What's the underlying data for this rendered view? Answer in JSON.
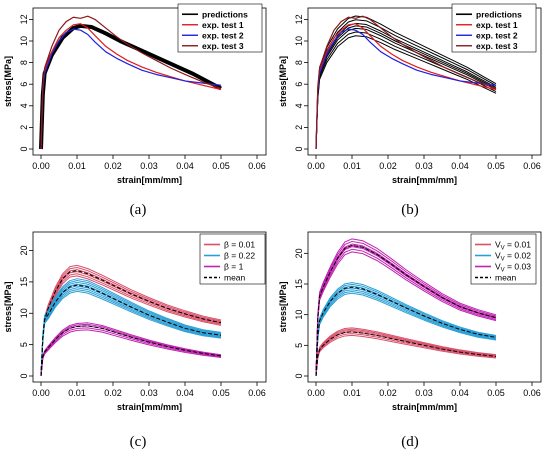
{
  "chart_data": [
    {
      "panel": "(a)",
      "type": "line",
      "xlabel": "strain[mm/mm]",
      "ylabel": "stress[MPa]",
      "xlim": [
        0,
        0.06
      ],
      "ylim": [
        0,
        12.5
      ],
      "xticks": [
        "0.00",
        "0.01",
        "0.02",
        "0.03",
        "0.04",
        "0.05",
        "0.06"
      ],
      "yticks": [
        "0",
        "2",
        "4",
        "6",
        "8",
        "10",
        "12"
      ],
      "legend_position": "top-right",
      "series": [
        {
          "name": "predictions",
          "color": "#000000",
          "width": 4,
          "x": [
            0,
            0.0005,
            0.001,
            0.003,
            0.006,
            0.009,
            0.011,
            0.014,
            0.018,
            0.022,
            0.026,
            0.03,
            0.034,
            0.038,
            0.042,
            0.046,
            0.05
          ],
          "y": [
            0,
            5.0,
            7.0,
            8.7,
            10.3,
            11.2,
            11.4,
            11.3,
            10.7,
            10.0,
            9.4,
            8.8,
            8.2,
            7.6,
            7.0,
            6.3,
            5.6
          ]
        },
        {
          "name": "exp. test 1",
          "color": "#e41a1c",
          "width": 1.2,
          "x": [
            0,
            0.0005,
            0.001,
            0.003,
            0.005,
            0.007,
            0.009,
            0.011,
            0.013,
            0.015,
            0.018,
            0.021,
            0.024,
            0.028,
            0.032,
            0.036,
            0.04,
            0.045,
            0.05
          ],
          "y": [
            0,
            5.5,
            7.2,
            9.0,
            10.3,
            11.0,
            11.5,
            11.6,
            11.2,
            10.5,
            9.5,
            8.8,
            8.2,
            7.6,
            7.1,
            6.7,
            6.3,
            5.9,
            5.5
          ]
        },
        {
          "name": "exp. test 2",
          "color": "#2020e0",
          "width": 1.2,
          "x": [
            0,
            0.0005,
            0.001,
            0.003,
            0.005,
            0.007,
            0.009,
            0.011,
            0.013,
            0.015,
            0.018,
            0.021,
            0.024,
            0.028,
            0.032,
            0.036,
            0.04,
            0.045,
            0.05
          ],
          "y": [
            0,
            5.4,
            7.0,
            8.8,
            10.0,
            10.8,
            11.1,
            11.0,
            10.6,
            9.9,
            9.0,
            8.4,
            7.9,
            7.3,
            6.9,
            6.6,
            6.3,
            6.1,
            5.9
          ]
        },
        {
          "name": "exp. test 3",
          "color": "#8b1a1a",
          "width": 1.2,
          "x": [
            0,
            0.0005,
            0.001,
            0.003,
            0.005,
            0.007,
            0.009,
            0.011,
            0.013,
            0.015,
            0.018,
            0.021,
            0.024,
            0.028,
            0.032,
            0.036,
            0.04,
            0.045,
            0.05
          ],
          "y": [
            0,
            5.8,
            7.5,
            9.5,
            11.0,
            11.8,
            12.2,
            12.1,
            12.3,
            12.0,
            11.2,
            10.4,
            9.7,
            8.9,
            8.2,
            7.5,
            6.9,
            6.2,
            5.6
          ]
        }
      ]
    },
    {
      "panel": "(b)",
      "type": "line",
      "xlabel": "strain[mm/mm]",
      "ylabel": "stress[MPa]",
      "xlim": [
        0,
        0.06
      ],
      "ylim": [
        0,
        12.5
      ],
      "xticks": [
        "0.00",
        "0.01",
        "0.02",
        "0.03",
        "0.04",
        "0.05",
        "0.06"
      ],
      "yticks": [
        "0",
        "2",
        "4",
        "6",
        "8",
        "10",
        "12"
      ],
      "legend_position": "top-right",
      "series": [
        {
          "name": "predictions",
          "color": "#000000",
          "width": 1,
          "x": [
            0,
            0.0005,
            0.001,
            0.003,
            0.006,
            0.009,
            0.011,
            0.014,
            0.018,
            0.022,
            0.026,
            0.03,
            0.034,
            0.038,
            0.042,
            0.046,
            0.05
          ],
          "y": [
            0,
            5.0,
            7.0,
            8.7,
            10.3,
            11.2,
            11.4,
            11.3,
            10.7,
            10.0,
            9.4,
            8.8,
            8.2,
            7.6,
            7.0,
            6.3,
            5.6
          ],
          "scales": [
            0.92,
            0.95,
            0.98,
            1.0,
            1.02,
            1.05,
            1.08
          ]
        },
        {
          "name": "exp. test 1",
          "color": "#e41a1c",
          "width": 1.2,
          "x": [
            0,
            0.0005,
            0.001,
            0.003,
            0.005,
            0.007,
            0.009,
            0.011,
            0.013,
            0.015,
            0.018,
            0.021,
            0.024,
            0.028,
            0.032,
            0.036,
            0.04,
            0.045,
            0.05
          ],
          "y": [
            0,
            5.5,
            7.2,
            9.0,
            10.3,
            11.0,
            11.5,
            11.6,
            11.2,
            10.5,
            9.5,
            8.8,
            8.2,
            7.6,
            7.1,
            6.7,
            6.3,
            5.9,
            5.5
          ]
        },
        {
          "name": "exp. test 2",
          "color": "#2020e0",
          "width": 1.2,
          "x": [
            0,
            0.0005,
            0.001,
            0.003,
            0.005,
            0.007,
            0.009,
            0.011,
            0.013,
            0.015,
            0.018,
            0.021,
            0.024,
            0.028,
            0.032,
            0.036,
            0.04,
            0.045,
            0.05
          ],
          "y": [
            0,
            5.4,
            7.0,
            8.8,
            10.0,
            10.8,
            11.1,
            11.0,
            10.6,
            9.9,
            9.0,
            8.4,
            7.9,
            7.3,
            6.9,
            6.6,
            6.3,
            6.1,
            5.9
          ]
        },
        {
          "name": "exp. test 3",
          "color": "#8b1a1a",
          "width": 1.2,
          "x": [
            0,
            0.0005,
            0.001,
            0.003,
            0.005,
            0.007,
            0.009,
            0.011,
            0.013,
            0.015,
            0.018,
            0.021,
            0.024,
            0.028,
            0.032,
            0.036,
            0.04,
            0.045,
            0.05
          ],
          "y": [
            0,
            5.8,
            7.5,
            9.5,
            11.0,
            11.8,
            12.2,
            12.1,
            12.3,
            12.0,
            11.2,
            10.4,
            9.7,
            8.9,
            8.2,
            7.5,
            6.9,
            6.2,
            5.6
          ]
        }
      ]
    },
    {
      "panel": "(c)",
      "type": "line",
      "xlabel": "strain[mm/mm]",
      "ylabel": "stress[MPa]",
      "xlim": [
        0,
        0.06
      ],
      "ylim": [
        0,
        22
      ],
      "xticks": [
        "0.00",
        "0.01",
        "0.02",
        "0.03",
        "0.04",
        "0.05",
        "0.06"
      ],
      "yticks": [
        "0",
        "5",
        "10",
        "15",
        "20"
      ],
      "legend_position": "top-right",
      "series": [
        {
          "name": "β = 0.01",
          "color": "#d9506a",
          "width": 1,
          "x": [
            0,
            0.0005,
            0.001,
            0.002,
            0.004,
            0.006,
            0.008,
            0.01,
            0.013,
            0.017,
            0.021,
            0.025,
            0.03,
            0.035,
            0.04,
            0.045,
            0.05
          ],
          "y": [
            0,
            6.0,
            9.0,
            10.8,
            13.5,
            15.5,
            16.6,
            16.8,
            16.3,
            15.3,
            14.2,
            13.1,
            11.9,
            10.8,
            9.9,
            9.1,
            8.5
          ],
          "scales": [
            0.95,
            0.97,
            0.99,
            1.01,
            1.03,
            1.05
          ]
        },
        {
          "name": "β = 0.22",
          "color": "#2a9fd6",
          "width": 1,
          "x": [
            0,
            0.0005,
            0.001,
            0.002,
            0.004,
            0.006,
            0.008,
            0.01,
            0.013,
            0.017,
            0.021,
            0.025,
            0.03,
            0.035,
            0.04,
            0.045,
            0.05
          ],
          "y": [
            0,
            6.0,
            9.0,
            9.8,
            11.8,
            13.3,
            14.2,
            14.5,
            14.2,
            13.2,
            12.1,
            11.0,
            9.7,
            8.6,
            7.6,
            6.9,
            6.5
          ],
          "scales": [
            0.93,
            0.95,
            0.97,
            0.99,
            1.01,
            1.03,
            1.05,
            1.07
          ]
        },
        {
          "name": "β = 1",
          "color": "#c022b0",
          "width": 1,
          "x": [
            0,
            0.0005,
            0.001,
            0.002,
            0.004,
            0.006,
            0.008,
            0.01,
            0.013,
            0.017,
            0.021,
            0.025,
            0.03,
            0.035,
            0.04,
            0.045,
            0.05
          ],
          "y": [
            0,
            3.0,
            3.8,
            4.5,
            5.8,
            6.9,
            7.6,
            7.9,
            8.0,
            7.6,
            6.9,
            6.2,
            5.4,
            4.7,
            4.1,
            3.6,
            3.2
          ],
          "scales": [
            0.92,
            0.96,
            1.0,
            1.03,
            1.06
          ]
        },
        {
          "name": "mean",
          "color": "#000000",
          "width": 1,
          "dash": true
        }
      ]
    },
    {
      "panel": "(d)",
      "type": "line",
      "xlabel": "strain[mm/mm]",
      "ylabel": "stress[MPa]",
      "xlim": [
        0,
        0.06
      ],
      "ylim": [
        0,
        22.5
      ],
      "xticks": [
        "0.00",
        "0.01",
        "0.02",
        "0.03",
        "0.04",
        "0.05",
        "0.06"
      ],
      "yticks": [
        "0",
        "5",
        "10",
        "15",
        "20"
      ],
      "legend_position": "top-right",
      "series": [
        {
          "name": "V_V = 0.01",
          "color": "#d9506a",
          "width": 1,
          "x": [
            0,
            0.0005,
            0.001,
            0.002,
            0.004,
            0.006,
            0.008,
            0.01,
            0.013,
            0.017,
            0.021,
            0.025,
            0.03,
            0.035,
            0.04,
            0.045,
            0.05
          ],
          "y": [
            0,
            3.2,
            4.3,
            5.0,
            6.0,
            6.7,
            7.1,
            7.2,
            7.0,
            6.6,
            6.1,
            5.6,
            5.0,
            4.4,
            3.9,
            3.5,
            3.2
          ],
          "scales": [
            0.92,
            0.96,
            1.0,
            1.03,
            1.06,
            1.09
          ]
        },
        {
          "name": "V_V = 0.02",
          "color": "#2a9fd6",
          "width": 1,
          "x": [
            0,
            0.0005,
            0.001,
            0.002,
            0.004,
            0.006,
            0.008,
            0.01,
            0.013,
            0.017,
            0.021,
            0.025,
            0.03,
            0.035,
            0.04,
            0.045,
            0.05
          ],
          "y": [
            0,
            6.5,
            9.0,
            10.3,
            12.2,
            13.5,
            14.3,
            14.5,
            14.2,
            13.3,
            12.2,
            11.1,
            9.8,
            8.6,
            7.6,
            6.8,
            6.3
          ],
          "scales": [
            0.93,
            0.95,
            0.97,
            0.99,
            1.01,
            1.03,
            1.05
          ]
        },
        {
          "name": "V_V = 0.03",
          "color": "#c022b0",
          "width": 1,
          "x": [
            0,
            0.0005,
            0.001,
            0.002,
            0.004,
            0.006,
            0.008,
            0.01,
            0.013,
            0.017,
            0.021,
            0.025,
            0.03,
            0.035,
            0.04,
            0.045,
            0.05
          ],
          "y": [
            0,
            9.5,
            13.0,
            14.5,
            17.0,
            19.2,
            20.8,
            21.3,
            21.0,
            19.8,
            18.2,
            16.5,
            14.6,
            12.8,
            11.3,
            10.3,
            9.5
          ],
          "scales": [
            0.95,
            0.97,
            0.99,
            1.0,
            1.01,
            1.03,
            1.05
          ]
        },
        {
          "name": "mean",
          "color": "#000000",
          "width": 1,
          "dash": true
        }
      ]
    }
  ]
}
